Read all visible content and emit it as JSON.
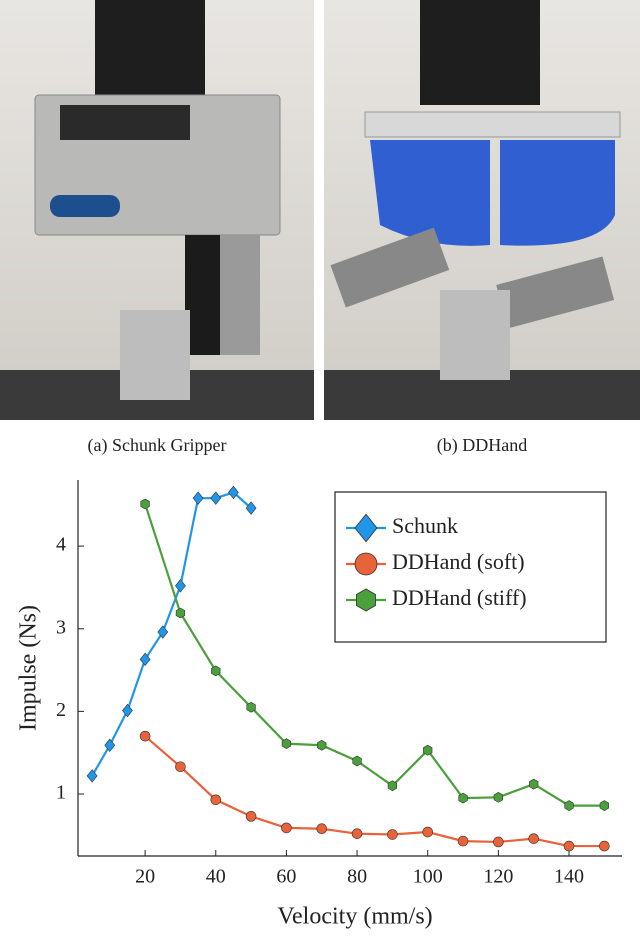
{
  "panels": [
    {
      "caption": "(a) Schunk Gripper"
    },
    {
      "caption": "(b) DDHand"
    }
  ],
  "chart_data": {
    "type": "line",
    "xlabel": "Velocity (mm/s)",
    "ylabel": "Impulse (Ns)",
    "xlim": [
      1,
      155
    ],
    "ylim": [
      0.25,
      4.8
    ],
    "xticks": [
      20,
      40,
      60,
      80,
      100,
      120,
      140
    ],
    "yticks": [
      1,
      2,
      3,
      4
    ],
    "legend": "upper right",
    "series": [
      {
        "name": "Schunk",
        "color": "#2196e8",
        "marker": "diamond",
        "x": [
          5,
          10,
          15,
          20,
          25,
          30,
          35,
          40,
          45,
          50
        ],
        "values": [
          1.22,
          1.59,
          2.01,
          2.63,
          2.96,
          3.52,
          4.58,
          4.58,
          4.65,
          4.46
        ]
      },
      {
        "name": "DDHand (soft)",
        "color": "#e8623a",
        "marker": "circle",
        "x": [
          20,
          30,
          40,
          50,
          60,
          70,
          80,
          90,
          100,
          110,
          120,
          130,
          140,
          150
        ],
        "values": [
          1.7,
          1.33,
          0.93,
          0.73,
          0.59,
          0.58,
          0.52,
          0.51,
          0.54,
          0.43,
          0.42,
          0.46,
          0.37,
          0.37
        ]
      },
      {
        "name": "DDHand (stiff)",
        "color": "#4aa03a",
        "marker": "hexagon",
        "x": [
          20,
          30,
          40,
          50,
          60,
          70,
          80,
          90,
          100,
          110,
          120,
          130,
          140,
          150
        ],
        "values": [
          4.51,
          3.19,
          2.49,
          2.05,
          1.61,
          1.59,
          1.4,
          1.1,
          1.53,
          0.95,
          0.96,
          1.12,
          0.86,
          0.86
        ]
      }
    ]
  }
}
